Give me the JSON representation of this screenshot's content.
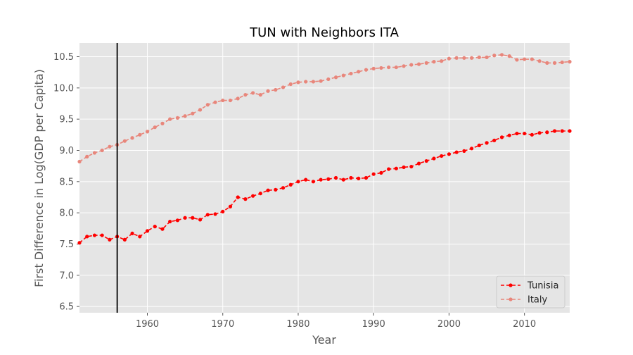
{
  "chart_data": {
    "type": "line",
    "title": "TUN with Neighbors ITA",
    "xlabel": "Year",
    "ylabel": "First Difference in Log(GDP per Capita)",
    "xlim": [
      1951,
      2016
    ],
    "ylim": [
      6.4,
      10.72
    ],
    "x_ticks": [
      1960,
      1970,
      1980,
      1990,
      2000,
      2010
    ],
    "y_ticks": [
      6.5,
      7.0,
      7.5,
      8.0,
      8.5,
      9.0,
      9.5,
      10.0,
      10.5
    ],
    "grid": true,
    "legend_position": "bottom-right",
    "vertical_line_x": 1956,
    "x": [
      1951,
      1952,
      1953,
      1954,
      1955,
      1956,
      1957,
      1958,
      1959,
      1960,
      1961,
      1962,
      1963,
      1964,
      1965,
      1966,
      1967,
      1968,
      1969,
      1970,
      1971,
      1972,
      1973,
      1974,
      1975,
      1976,
      1977,
      1978,
      1979,
      1980,
      1981,
      1982,
      1983,
      1984,
      1985,
      1986,
      1987,
      1988,
      1989,
      1990,
      1991,
      1992,
      1993,
      1994,
      1995,
      1996,
      1997,
      1998,
      1999,
      2000,
      2001,
      2002,
      2003,
      2004,
      2005,
      2006,
      2007,
      2008,
      2009,
      2010,
      2011,
      2012,
      2013,
      2014,
      2015,
      2016
    ],
    "series": [
      {
        "name": "Tunisia",
        "color": "#ff0000",
        "style": "dashed",
        "marker": "circle",
        "values": [
          7.52,
          7.62,
          7.64,
          7.64,
          7.57,
          7.62,
          7.57,
          7.67,
          7.62,
          7.71,
          7.78,
          7.74,
          7.86,
          7.88,
          7.92,
          7.92,
          7.89,
          7.97,
          7.98,
          8.02,
          8.1,
          8.25,
          8.22,
          8.27,
          8.31,
          8.36,
          8.37,
          8.4,
          8.45,
          8.5,
          8.53,
          8.5,
          8.53,
          8.54,
          8.56,
          8.53,
          8.56,
          8.55,
          8.56,
          8.62,
          8.64,
          8.7,
          8.71,
          8.73,
          8.74,
          8.79,
          8.83,
          8.87,
          8.91,
          8.94,
          8.97,
          8.99,
          9.03,
          9.08,
          9.12,
          9.16,
          9.21,
          9.24,
          9.27,
          9.27,
          9.25,
          9.28,
          9.29,
          9.31,
          9.31,
          9.31
        ]
      },
      {
        "name": "Italy",
        "color": "#e8867b",
        "style": "dashed",
        "marker": "circle",
        "values": [
          8.82,
          8.9,
          8.96,
          9.0,
          9.06,
          9.09,
          9.15,
          9.2,
          9.25,
          9.3,
          9.37,
          9.43,
          9.5,
          9.52,
          9.55,
          9.59,
          9.65,
          9.73,
          9.77,
          9.8,
          9.8,
          9.83,
          9.89,
          9.92,
          9.89,
          9.95,
          9.97,
          10.01,
          10.06,
          10.09,
          10.1,
          10.1,
          10.11,
          10.14,
          10.17,
          10.2,
          10.23,
          10.26,
          10.29,
          10.31,
          10.32,
          10.33,
          10.33,
          10.35,
          10.37,
          10.38,
          10.4,
          10.42,
          10.43,
          10.47,
          10.48,
          10.48,
          10.48,
          10.49,
          10.49,
          10.52,
          10.53,
          10.51,
          10.45,
          10.46,
          10.46,
          10.43,
          10.4,
          10.4,
          10.41,
          10.42
        ]
      }
    ]
  }
}
